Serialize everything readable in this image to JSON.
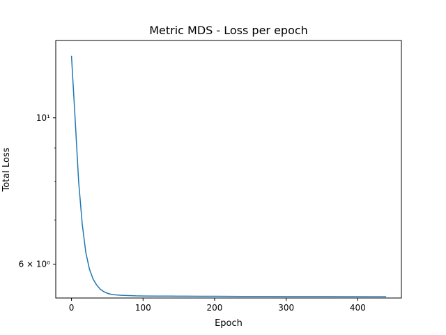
{
  "chart_data": {
    "type": "line",
    "title": "Metric MDS - Loss per epoch",
    "xlabel": "Epoch",
    "ylabel": "Total Loss",
    "xlim": [
      -22,
      461
    ],
    "ylim": [
      5.33,
      13.1
    ],
    "yscale": "log",
    "grid": false,
    "legend": "none",
    "x_ticks": [
      {
        "value": 0,
        "label": "0"
      },
      {
        "value": 100,
        "label": "100"
      },
      {
        "value": 200,
        "label": "200"
      },
      {
        "value": 300,
        "label": "300"
      },
      {
        "value": 400,
        "label": "400"
      }
    ],
    "y_major_ticks": [
      {
        "value": 6,
        "label": "6 × 10⁰"
      },
      {
        "value": 10,
        "label": "10¹"
      }
    ],
    "y_minor_ticks": [
      7,
      8,
      9
    ],
    "line_color": "#1f77b4",
    "series": [
      {
        "x": [
          0,
          5,
          10,
          15,
          20,
          25,
          30,
          35,
          40,
          45,
          50,
          55,
          60,
          70,
          80,
          90,
          100,
          120,
          140,
          160,
          180,
          200,
          220,
          240,
          260,
          280,
          300,
          320,
          340,
          360,
          380,
          400,
          420,
          439
        ],
        "y": [
          12.4,
          10.0,
          8.0,
          6.9,
          6.25,
          5.9,
          5.7,
          5.58,
          5.5,
          5.45,
          5.42,
          5.4,
          5.39,
          5.38,
          5.375,
          5.37,
          5.368,
          5.366,
          5.365,
          5.364,
          5.363,
          5.362,
          5.361,
          5.36,
          5.36,
          5.359,
          5.358,
          5.358,
          5.357,
          5.357,
          5.356,
          5.356,
          5.355,
          5.355
        ]
      }
    ]
  }
}
